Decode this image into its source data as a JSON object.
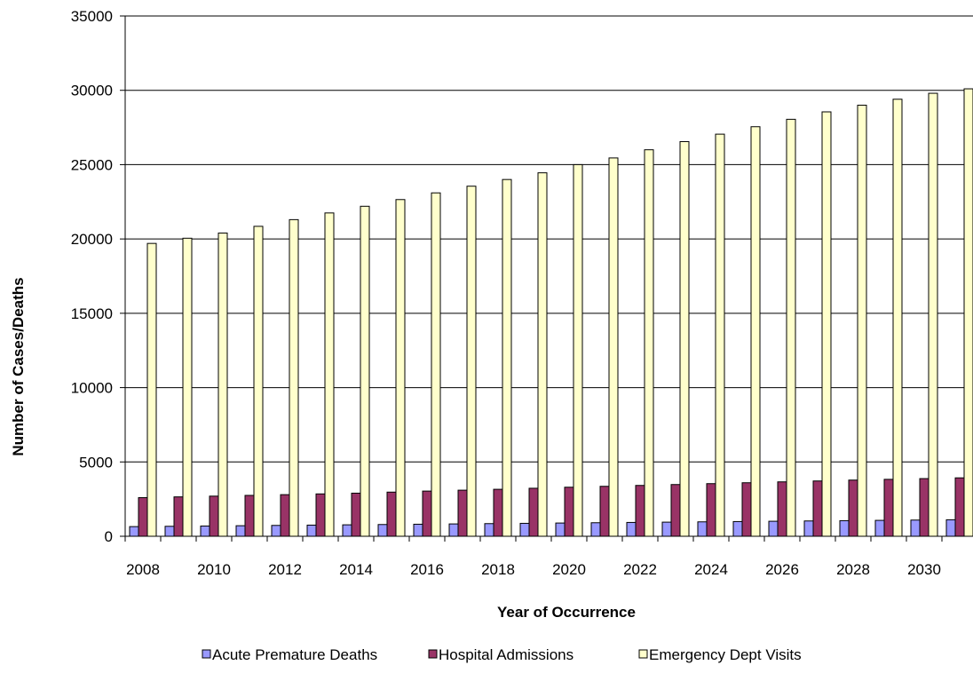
{
  "chart_data": {
    "type": "bar",
    "title": "",
    "xlabel": "Year of Occurrence",
    "ylabel": "Number of Cases/Deaths",
    "ylim": [
      0,
      35000
    ],
    "yticks": [
      "0",
      "5000",
      "10000",
      "15000",
      "20000",
      "25000",
      "30000",
      "35000"
    ],
    "categories": [
      "2008",
      "2009",
      "2010",
      "2011",
      "2012",
      "2013",
      "2014",
      "2015",
      "2016",
      "2017",
      "2018",
      "2019",
      "2020",
      "2021",
      "2022",
      "2023",
      "2024",
      "2025",
      "2026",
      "2027",
      "2028",
      "2029",
      "2030",
      "2031"
    ],
    "x_tick_labels": [
      "2008",
      "2010",
      "2012",
      "2014",
      "2016",
      "2018",
      "2020",
      "2022",
      "2024",
      "2026",
      "2028",
      "2030"
    ],
    "grid": "horizontal",
    "legend_position": "bottom",
    "series": [
      {
        "name": "Acute Premature Deaths",
        "color": "#9999ff",
        "values": [
          650,
          670,
          690,
          710,
          730,
          750,
          770,
          790,
          810,
          830,
          850,
          870,
          890,
          910,
          930,
          950,
          970,
          990,
          1010,
          1030,
          1050,
          1070,
          1090,
          1110
        ]
      },
      {
        "name": "Hospital Admissions",
        "color": "#993366",
        "values": [
          2600,
          2650,
          2700,
          2750,
          2800,
          2850,
          2900,
          2970,
          3040,
          3100,
          3160,
          3230,
          3300,
          3360,
          3420,
          3480,
          3540,
          3600,
          3660,
          3720,
          3780,
          3830,
          3880,
          3930
        ]
      },
      {
        "name": "Emergency Dept Visits",
        "color": "#ffffcc",
        "values": [
          19700,
          20050,
          20400,
          20850,
          21300,
          21750,
          22200,
          22650,
          23100,
          23550,
          24000,
          24450,
          25000,
          25450,
          26000,
          26550,
          27050,
          27550,
          28050,
          28550,
          29000,
          29400,
          29800,
          30100
        ]
      }
    ]
  }
}
